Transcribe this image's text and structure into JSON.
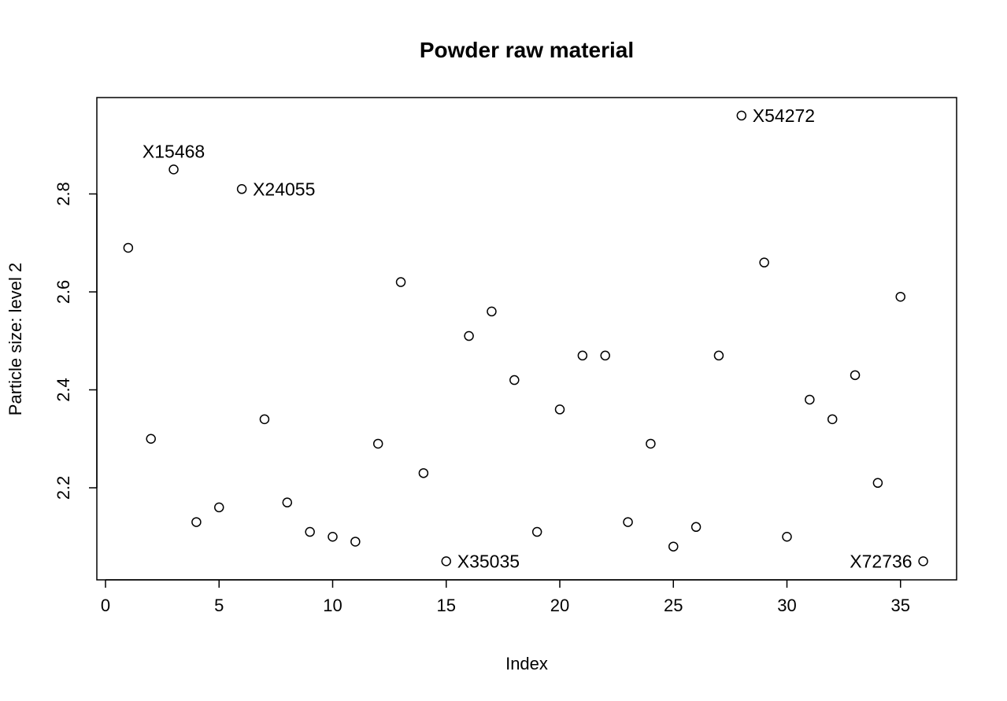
{
  "chart_data": {
    "type": "scatter",
    "title": "Powder raw material",
    "xlabel": "Index",
    "ylabel": "Particle size: level 2",
    "xlim": [
      0,
      36
    ],
    "ylim": [
      2.05,
      2.96
    ],
    "x_ticks": [
      0,
      5,
      10,
      15,
      20,
      25,
      30,
      35
    ],
    "x_tick_labels": [
      "0",
      "5",
      "10",
      "15",
      "20",
      "25",
      "30",
      "35"
    ],
    "y_ticks": [
      2.2,
      2.4,
      2.6,
      2.8
    ],
    "y_tick_labels": [
      "2.2",
      "2.4",
      "2.6",
      "2.8"
    ],
    "grid": false,
    "marker": "open-circle",
    "x": [
      1,
      2,
      3,
      4,
      5,
      6,
      7,
      8,
      9,
      10,
      11,
      12,
      13,
      14,
      15,
      16,
      17,
      18,
      19,
      20,
      21,
      22,
      23,
      24,
      25,
      26,
      27,
      28,
      29,
      30,
      31,
      32,
      33,
      34,
      35,
      36
    ],
    "y": [
      2.69,
      2.3,
      2.85,
      2.13,
      2.16,
      2.81,
      2.34,
      2.17,
      2.11,
      2.1,
      2.09,
      2.29,
      2.62,
      2.23,
      2.05,
      2.51,
      2.56,
      2.42,
      2.11,
      2.36,
      2.47,
      2.47,
      2.13,
      2.29,
      2.08,
      2.12,
      2.47,
      2.96,
      2.66,
      2.1,
      2.38,
      2.34,
      2.43,
      2.21,
      2.59,
      2.05
    ],
    "annotations": [
      {
        "x": 3,
        "y": 2.85,
        "text": "X15468",
        "side": "above"
      },
      {
        "x": 6,
        "y": 2.81,
        "text": "X24055",
        "side": "right"
      },
      {
        "x": 15,
        "y": 2.05,
        "text": "X35035",
        "side": "right"
      },
      {
        "x": 28,
        "y": 2.96,
        "text": "X54272",
        "side": "right"
      },
      {
        "x": 36,
        "y": 2.05,
        "text": "X72736",
        "side": "left"
      }
    ]
  }
}
